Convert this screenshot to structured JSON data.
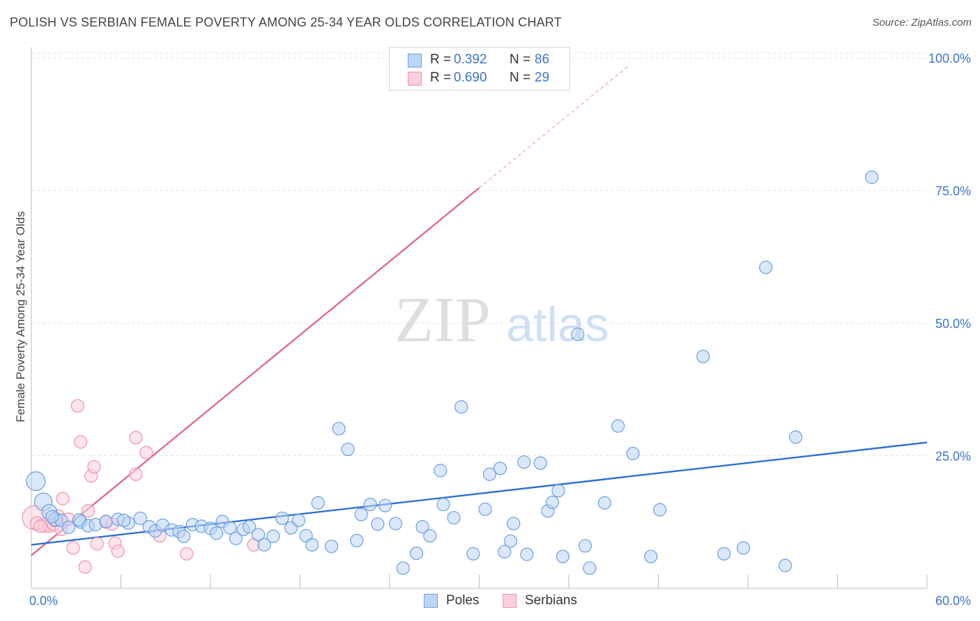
{
  "header": {
    "title": "POLISH VS SERBIAN FEMALE POVERTY AMONG 25-34 YEAR OLDS CORRELATION CHART",
    "source": "Source: ZipAtlas.com"
  },
  "watermark": {
    "zip": "ZIP",
    "atlas": "atlas"
  },
  "legend": {
    "r_label": "R =",
    "n_label": "N =",
    "entries": [
      {
        "r": "0.392",
        "n": "86",
        "color": "#6a9fe0"
      },
      {
        "r": "0.690",
        "n": "29",
        "color": "#f090ac"
      }
    ]
  },
  "bottom_legend": [
    {
      "label": "Poles",
      "color": "#6a9fe0"
    },
    {
      "label": "Serbians",
      "color": "#f090ac"
    }
  ],
  "chart_data": {
    "type": "scatter",
    "title": "POLISH VS SERBIAN FEMALE POVERTY AMONG 25-34 YEAR OLDS CORRELATION CHART",
    "xlabel": "",
    "ylabel": "Female Poverty Among 25-34 Year Olds",
    "xlim": [
      0,
      60
    ],
    "ylim": [
      0,
      102
    ],
    "x_tick_labels": [
      {
        "value": 0,
        "label": "0.0%"
      },
      {
        "value": 60,
        "label": "60.0%"
      }
    ],
    "y_tick_labels": [
      {
        "value": 25,
        "label": "25.0%"
      },
      {
        "value": 50,
        "label": "50.0%"
      },
      {
        "value": 75,
        "label": "75.0%"
      },
      {
        "value": 100,
        "label": "100.0%"
      }
    ],
    "grid": true,
    "legend_position": "top-center",
    "series": [
      {
        "name": "Poles",
        "color": "#6a9fe0",
        "trend": {
          "x": [
            0,
            60
          ],
          "y": [
            8.2,
            27.5
          ]
        },
        "points": [
          [
            0.3,
            20.2,
            1.5
          ],
          [
            0.8,
            16.3,
            1.4
          ],
          [
            1.2,
            14.4,
            1.2
          ],
          [
            1.6,
            13.0,
            1.1
          ],
          [
            2.0,
            12.8,
            1
          ],
          [
            2.5,
            11.5,
            1
          ],
          [
            3.3,
            12.5,
            1
          ],
          [
            3.8,
            11.8,
            1
          ],
          [
            4.3,
            12.0,
            1
          ],
          [
            5.0,
            12.6,
            1
          ],
          [
            5.8,
            13.0,
            1
          ],
          [
            6.5,
            12.3,
            1
          ],
          [
            7.3,
            13.2,
            1
          ],
          [
            7.9,
            11.6,
            1
          ],
          [
            8.3,
            10.8,
            1
          ],
          [
            8.8,
            11.9,
            1
          ],
          [
            9.4,
            11.0,
            1
          ],
          [
            9.9,
            10.7,
            1
          ],
          [
            10.2,
            9.8,
            1
          ],
          [
            10.8,
            12.0,
            1
          ],
          [
            11.4,
            11.7,
            1
          ],
          [
            12.0,
            11.3,
            1
          ],
          [
            12.4,
            10.4,
            1
          ],
          [
            12.8,
            12.6,
            1
          ],
          [
            13.3,
            11.4,
            1
          ],
          [
            13.7,
            9.4,
            1
          ],
          [
            14.2,
            11.1,
            1
          ],
          [
            14.6,
            11.6,
            1
          ],
          [
            15.2,
            10.1,
            1
          ],
          [
            15.6,
            8.2,
            1
          ],
          [
            16.2,
            9.8,
            1
          ],
          [
            16.8,
            13.2,
            1
          ],
          [
            17.4,
            11.4,
            1
          ],
          [
            17.9,
            12.8,
            1
          ],
          [
            18.4,
            9.9,
            1
          ],
          [
            18.8,
            8.2,
            1
          ],
          [
            19.2,
            16.1,
            1
          ],
          [
            20.1,
            7.9,
            1
          ],
          [
            20.6,
            30.1,
            1
          ],
          [
            21.2,
            26.2,
            1
          ],
          [
            21.8,
            9.0,
            1
          ],
          [
            22.1,
            13.9,
            1
          ],
          [
            22.7,
            15.8,
            1
          ],
          [
            23.2,
            12.1,
            1
          ],
          [
            23.7,
            15.6,
            1
          ],
          [
            24.4,
            12.2,
            1
          ],
          [
            24.9,
            3.8,
            1
          ],
          [
            25.8,
            6.6,
            1
          ],
          [
            26.2,
            11.6,
            1
          ],
          [
            26.7,
            9.9,
            1
          ],
          [
            27.4,
            22.2,
            1
          ],
          [
            27.6,
            15.8,
            1
          ],
          [
            28.3,
            13.3,
            1
          ],
          [
            28.8,
            34.2,
            1
          ],
          [
            29.6,
            6.5,
            1
          ],
          [
            30.4,
            14.9,
            1
          ],
          [
            30.7,
            21.5,
            1
          ],
          [
            31.4,
            22.6,
            1
          ],
          [
            31.7,
            6.9,
            1
          ],
          [
            32.1,
            8.9,
            1
          ],
          [
            32.3,
            12.2,
            1
          ],
          [
            33.0,
            23.8,
            1
          ],
          [
            33.2,
            6.4,
            1
          ],
          [
            34.1,
            23.6,
            1
          ],
          [
            34.6,
            14.6,
            1
          ],
          [
            34.9,
            16.2,
            1
          ],
          [
            35.3,
            18.4,
            1
          ],
          [
            35.6,
            6.0,
            1
          ],
          [
            36.6,
            47.9,
            1
          ],
          [
            37.1,
            8.0,
            1
          ],
          [
            37.4,
            3.8,
            1
          ],
          [
            38.4,
            16.1,
            1
          ],
          [
            39.3,
            30.6,
            1
          ],
          [
            40.3,
            25.4,
            1
          ],
          [
            41.5,
            6.0,
            1
          ],
          [
            42.1,
            14.8,
            1
          ],
          [
            45.0,
            43.7,
            1
          ],
          [
            46.4,
            6.5,
            1
          ],
          [
            47.7,
            7.6,
            1
          ],
          [
            49.2,
            60.5,
            1
          ],
          [
            50.5,
            4.3,
            1
          ],
          [
            51.2,
            28.5,
            1
          ],
          [
            56.3,
            77.5,
            1
          ],
          [
            3.2,
            12.9,
            1
          ],
          [
            6.2,
            12.8,
            1
          ],
          [
            1.4,
            13.5,
            1
          ]
        ]
      },
      {
        "name": "Serbians",
        "color": "#f090ac",
        "trend": {
          "x": [
            0,
            30
          ],
          "y": [
            6.2,
            75.5
          ]
        },
        "dashed_extension": {
          "x": [
            30,
            40
          ],
          "y": [
            75.5,
            98.5
          ]
        },
        "points": [
          [
            0.2,
            13.3,
            1.9
          ],
          [
            0.4,
            12.2,
            1.1
          ],
          [
            0.9,
            11.9,
            1.1
          ],
          [
            1.2,
            11.7,
            1
          ],
          [
            1.5,
            12.0,
            1
          ],
          [
            1.8,
            13.6,
            1
          ],
          [
            2.0,
            11.1,
            1
          ],
          [
            2.1,
            16.9,
            1
          ],
          [
            2.5,
            13.0,
            1
          ],
          [
            2.8,
            7.6,
            1
          ],
          [
            3.1,
            34.4,
            1
          ],
          [
            3.3,
            27.6,
            1
          ],
          [
            3.6,
            4.0,
            1
          ],
          [
            3.8,
            14.6,
            1
          ],
          [
            4.0,
            21.2,
            1
          ],
          [
            4.2,
            22.9,
            1
          ],
          [
            4.4,
            8.4,
            1
          ],
          [
            5.0,
            12.5,
            1
          ],
          [
            5.6,
            8.5,
            1
          ],
          [
            5.8,
            7.0,
            1
          ],
          [
            5.4,
            12.1,
            1
          ],
          [
            7.0,
            21.5,
            1
          ],
          [
            7.0,
            28.4,
            1
          ],
          [
            7.7,
            25.6,
            1
          ],
          [
            8.6,
            9.9,
            1
          ],
          [
            10.4,
            6.5,
            1
          ],
          [
            14.9,
            8.2,
            1
          ],
          [
            0.6,
            11.7,
            1
          ],
          [
            1.6,
            12.8,
            1
          ]
        ]
      }
    ]
  }
}
